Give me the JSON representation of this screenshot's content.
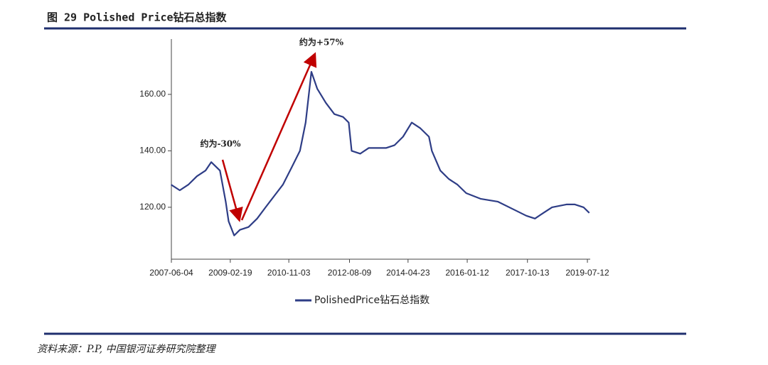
{
  "chart_data": {
    "type": "line",
    "title": "图 29 Polished Price钻石总指数",
    "source": "资料来源：P.P, 中国银河证券研究院整理",
    "annotations": [
      "约为-30%",
      "约为+57%"
    ],
    "x": [
      "2007-06-01",
      "2007-09-01",
      "2007-12-01",
      "2008-03-01",
      "2008-06-01",
      "2008-08-01",
      "2008-11-01",
      "2009-01-01",
      "2009-02-01",
      "2009-04-01",
      "2009-06-01",
      "2009-09-01",
      "2009-12-01",
      "2010-03-01",
      "2010-06-01",
      "2010-09-01",
      "2010-12-01",
      "2011-03-01",
      "2011-05-01",
      "2011-07-01",
      "2011-09-01",
      "2011-12-01",
      "2012-03-01",
      "2012-06-01",
      "2012-08-01",
      "2012-09-01",
      "2012-12-01",
      "2013-03-01",
      "2013-06-01",
      "2013-09-01",
      "2013-12-01",
      "2014-03-01",
      "2014-06-01",
      "2014-09-01",
      "2014-12-01",
      "2015-01-01",
      "2015-04-01",
      "2015-07-01",
      "2015-10-01",
      "2016-01-01",
      "2016-06-01",
      "2016-12-01",
      "2017-06-01",
      "2017-10-01",
      "2018-01-01",
      "2018-04-01",
      "2018-07-01",
      "2018-12-01",
      "2019-03-01",
      "2019-06-01",
      "2019-08-01"
    ],
    "series": [
      {
        "name": "PolishedPrice钻石总指数",
        "color": "#2e3d86",
        "values": [
          128,
          126,
          128,
          131,
          133,
          136,
          133,
          122,
          115,
          110,
          112,
          113,
          116,
          120,
          124,
          128,
          134,
          140,
          150,
          168,
          162,
          157,
          153,
          152,
          150,
          140,
          139,
          141,
          141,
          141,
          142,
          145,
          150,
          148,
          145,
          140,
          133,
          130,
          128,
          125,
          123,
          122,
          119,
          117,
          116,
          118,
          120,
          121,
          121,
          120,
          118
        ]
      }
    ],
    "xlim": [
      "2007-06-04",
      "2019-08-11"
    ],
    "xticks": [
      "2007-06-04",
      "2009-02-19",
      "2010-11-03",
      "2012-08-09",
      "2014-04-23",
      "2016-01-12",
      "2017-10-13",
      "2019-07-12"
    ],
    "ylim": [
      101.6,
      179.6
    ],
    "yticks": [
      {
        "value": 120,
        "label": "120.00"
      },
      {
        "value": 140,
        "label": "140.00"
      },
      {
        "value": 160,
        "label": "160.00"
      }
    ]
  }
}
